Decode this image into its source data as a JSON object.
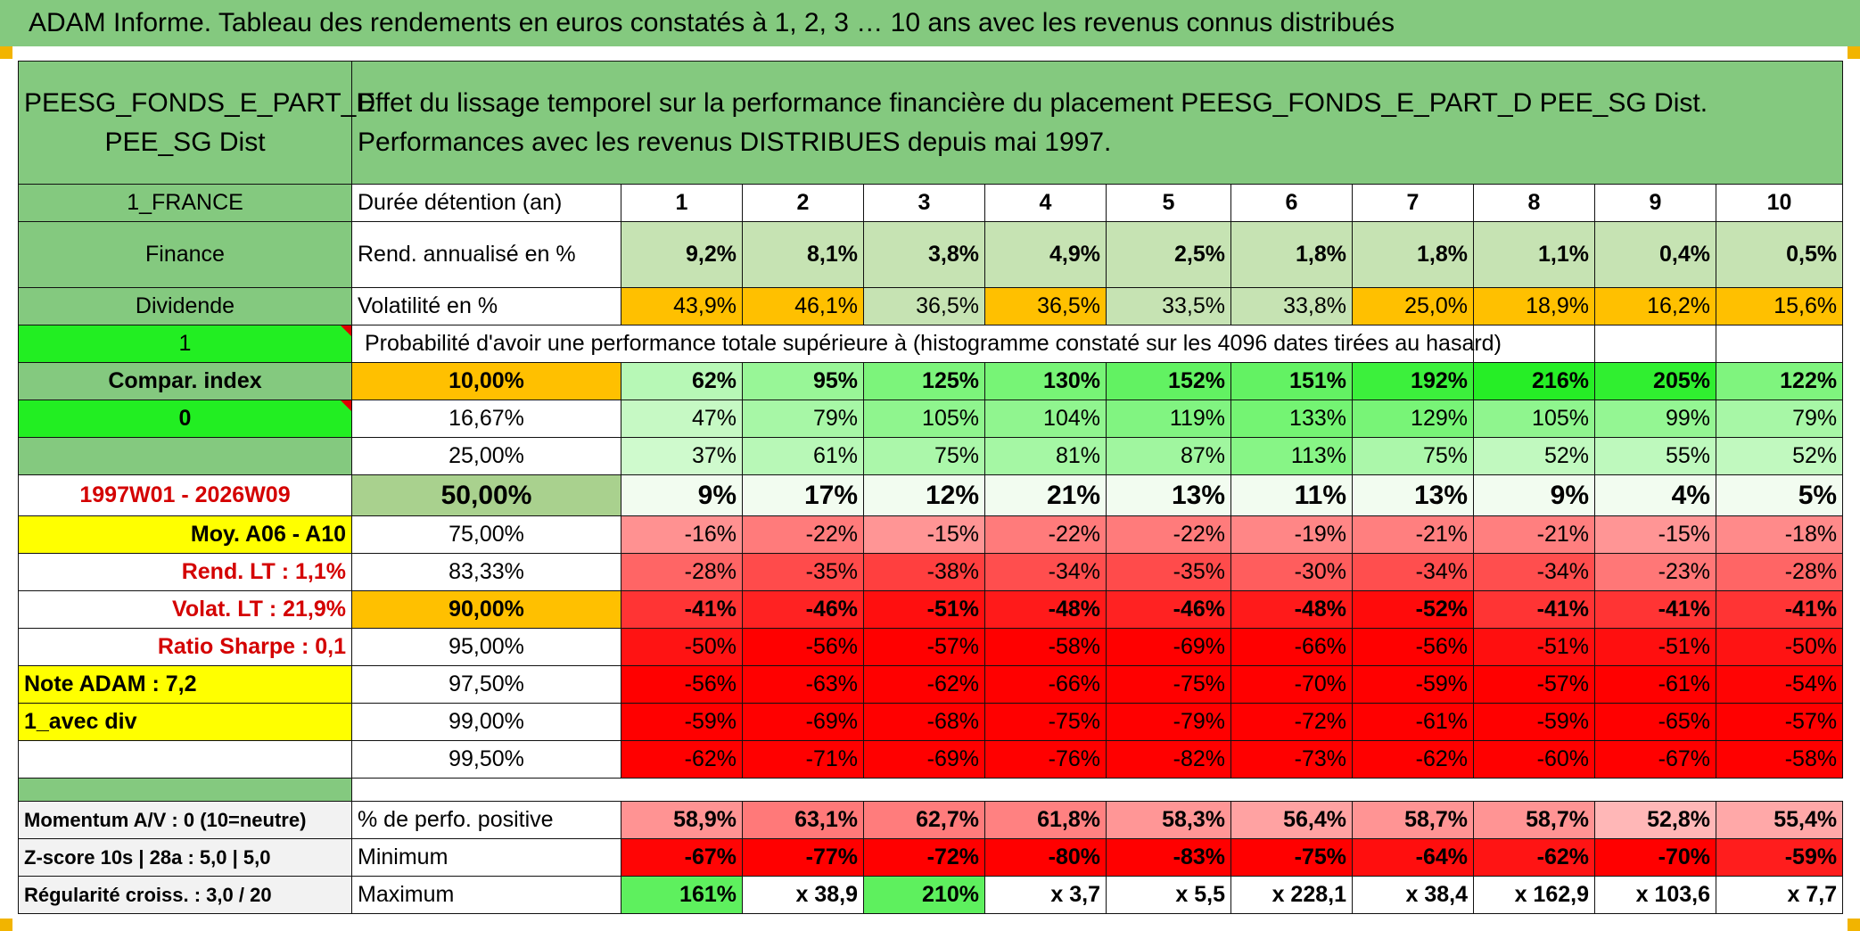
{
  "title": "ADAM Informe. Tableau des rendements en euros constatés à 1, 2, 3 … 10 ans avec les revenus connus distribués",
  "colors": {
    "header_green": "#84c97f",
    "light_green": "#c6e3b3",
    "orange": "#ffc000",
    "yellow": "#ffff00",
    "lime": "#22ee22",
    "positive_max": "#22ee22",
    "negative_max": "#ff0000"
  },
  "fund": {
    "name": "PEESG_FONDS_E_PART_D PEE_SG Dist",
    "description": "Effet du lissage temporel sur la performance financière du placement PEESG_FONDS_E_PART_D PEE_SG Dist. Performances avec les revenus DISTRIBUES depuis mai 1997."
  },
  "side": {
    "country": "1_FRANCE",
    "sector": "Finance",
    "type": "Dividende",
    "flag1": "1",
    "compar": "Compar. index",
    "flag0": "0",
    "period": "1997W01 - 2026W09",
    "moy": "Moy. A06 - A10",
    "rend_lt": "Rend. LT :   1,1%",
    "volat_lt": "Volat. LT :   21,9%",
    "sharpe": "Ratio Sharpe :    0,1",
    "note": "Note ADAM : 7,2",
    "div": "1_avec div",
    "momentum": "Momentum A/V : 0 (10=neutre)",
    "zscore": "Z-score 10s | 28a : 5,0 | 5,0",
    "regularite": "Régularité croiss. : 3,0 / 20"
  },
  "labels": {
    "duree": "Durée détention (an)",
    "rend": "Rend. annualisé en %",
    "volat": "Volatilité en %",
    "prob": "Probabilité d'avoir une performance totale supérieure à (histogramme constaté sur les 4096 dates tirées au hasard)",
    "pct_pos": "% de perfo. positive",
    "min": "Minimum",
    "max": "Maximum"
  },
  "years": [
    "1",
    "2",
    "3",
    "4",
    "5",
    "6",
    "7",
    "8",
    "9",
    "10"
  ],
  "rend": [
    "9,2%",
    "8,1%",
    "3,8%",
    "4,9%",
    "2,5%",
    "1,8%",
    "1,8%",
    "1,1%",
    "0,4%",
    "0,5%"
  ],
  "volat": [
    "43,9%",
    "46,1%",
    "36,5%",
    "36,5%",
    "33,5%",
    "33,8%",
    "25,0%",
    "18,9%",
    "16,2%",
    "15,6%"
  ],
  "volat_highlight": [
    true,
    true,
    false,
    true,
    false,
    false,
    true,
    true,
    true,
    true
  ],
  "prob_rows": [
    {
      "p": "10,00%",
      "vals": [
        "62%",
        "95%",
        "125%",
        "130%",
        "152%",
        "151%",
        "192%",
        "216%",
        "205%",
        "122%"
      ],
      "v": [
        62,
        95,
        125,
        130,
        152,
        151,
        192,
        216,
        205,
        122
      ]
    },
    {
      "p": "16,67%",
      "vals": [
        "47%",
        "79%",
        "105%",
        "104%",
        "119%",
        "133%",
        "129%",
        "105%",
        "99%",
        "79%"
      ],
      "v": [
        47,
        79,
        105,
        104,
        119,
        133,
        129,
        105,
        99,
        79
      ]
    },
    {
      "p": "25,00%",
      "vals": [
        "37%",
        "61%",
        "75%",
        "81%",
        "87%",
        "113%",
        "75%",
        "52%",
        "55%",
        "52%"
      ],
      "v": [
        37,
        61,
        75,
        81,
        87,
        113,
        75,
        52,
        55,
        52
      ]
    },
    {
      "p": "50,00%",
      "vals": [
        "9%",
        "17%",
        "12%",
        "21%",
        "13%",
        "11%",
        "13%",
        "9%",
        "4%",
        "5%"
      ],
      "v": [
        9,
        17,
        12,
        21,
        13,
        11,
        13,
        9,
        4,
        5
      ]
    },
    {
      "p": "75,00%",
      "vals": [
        "-16%",
        "-22%",
        "-15%",
        "-22%",
        "-22%",
        "-19%",
        "-21%",
        "-21%",
        "-15%",
        "-18%"
      ],
      "v": [
        -16,
        -22,
        -15,
        -22,
        -22,
        -19,
        -21,
        -21,
        -15,
        -18
      ]
    },
    {
      "p": "83,33%",
      "vals": [
        "-28%",
        "-35%",
        "-38%",
        "-34%",
        "-35%",
        "-30%",
        "-34%",
        "-34%",
        "-23%",
        "-28%"
      ],
      "v": [
        -28,
        -35,
        -38,
        -34,
        -35,
        -30,
        -34,
        -34,
        -23,
        -28
      ]
    },
    {
      "p": "90,00%",
      "vals": [
        "-41%",
        "-46%",
        "-51%",
        "-48%",
        "-46%",
        "-48%",
        "-52%",
        "-41%",
        "-41%",
        "-41%"
      ],
      "v": [
        -41,
        -46,
        -51,
        -48,
        -46,
        -48,
        -52,
        -41,
        -41,
        -41
      ]
    },
    {
      "p": "95,00%",
      "vals": [
        "-50%",
        "-56%",
        "-57%",
        "-58%",
        "-69%",
        "-66%",
        "-56%",
        "-51%",
        "-51%",
        "-50%"
      ],
      "v": [
        -50,
        -56,
        -57,
        -58,
        -69,
        -66,
        -56,
        -51,
        -51,
        -50
      ]
    },
    {
      "p": "97,50%",
      "vals": [
        "-56%",
        "-63%",
        "-62%",
        "-66%",
        "-75%",
        "-70%",
        "-59%",
        "-57%",
        "-61%",
        "-54%"
      ],
      "v": [
        -56,
        -63,
        -62,
        -66,
        -75,
        -70,
        -59,
        -57,
        -61,
        -54
      ]
    },
    {
      "p": "99,00%",
      "vals": [
        "-59%",
        "-69%",
        "-68%",
        "-75%",
        "-79%",
        "-72%",
        "-61%",
        "-59%",
        "-65%",
        "-57%"
      ],
      "v": [
        -59,
        -69,
        -68,
        -75,
        -79,
        -72,
        -61,
        -59,
        -65,
        -57
      ]
    },
    {
      "p": "99,50%",
      "vals": [
        "-62%",
        "-71%",
        "-69%",
        "-76%",
        "-82%",
        "-73%",
        "-62%",
        "-60%",
        "-67%",
        "-58%"
      ],
      "v": [
        -62,
        -71,
        -69,
        -76,
        -82,
        -73,
        -62,
        -60,
        -67,
        -58
      ]
    }
  ],
  "pct_pos": [
    "58,9%",
    "63,1%",
    "62,7%",
    "61,8%",
    "58,3%",
    "56,4%",
    "58,7%",
    "58,7%",
    "52,8%",
    "55,4%"
  ],
  "minimum": [
    "-67%",
    "-77%",
    "-72%",
    "-80%",
    "-83%",
    "-75%",
    "-64%",
    "-62%",
    "-70%",
    "-59%"
  ],
  "maximum": [
    "161%",
    "x 38,9",
    "210%",
    "x 3,7",
    "x 5,5",
    "x 228,1",
    "x 38,4",
    "x 162,9",
    "x 103,6",
    "x 7,7"
  ]
}
